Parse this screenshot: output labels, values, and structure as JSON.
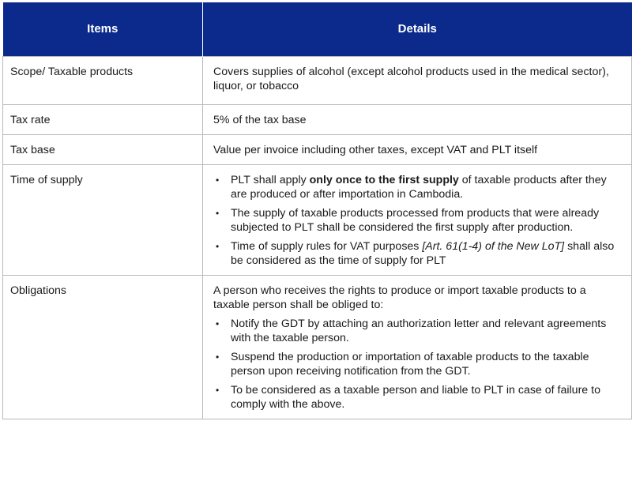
{
  "header": {
    "items": "Items",
    "details": "Details"
  },
  "rows": {
    "scope": {
      "item": "Scope/ Taxable products",
      "detail": "Covers supplies of alcohol (except alcohol products used in the medical sector), liquor, or tobacco"
    },
    "rate": {
      "item": "Tax rate",
      "detail": "5% of the tax base"
    },
    "base": {
      "item": "Tax base",
      "detail": "Value per invoice including other taxes, except VAT and PLT itself"
    },
    "time": {
      "item": "Time of supply",
      "b1_pre": "PLT shall apply ",
      "b1_bold": "only once to the first supply",
      "b1_post": " of taxable products after they are produced or after importation in Cambodia.",
      "b2": "The supply of taxable products processed from products that were already subjected to PLT shall be considered the first supply after production.",
      "b3_pre": "Time of supply rules for VAT purposes ",
      "b3_italic": "[Art. 61(1-4) of the New LoT]",
      "b3_post": " shall also be considered as the time of supply for PLT"
    },
    "obligations": {
      "item": "Obligations",
      "intro": "A person who receives the rights to produce or import taxable products to a taxable person shall be obliged to:",
      "bullets": [
        "Notify the GDT by attaching an authorization letter and relevant agreements with the taxable person.",
        "Suspend the production or importation of taxable products to the taxable person upon receiving notification from the GDT.",
        "To be considered as a taxable person and liable to PLT in case of failure to comply with the above."
      ]
    }
  },
  "colors": {
    "header_bg": "#0b2a8c",
    "header_text": "#ffffff",
    "border": "#b9b9b9"
  }
}
